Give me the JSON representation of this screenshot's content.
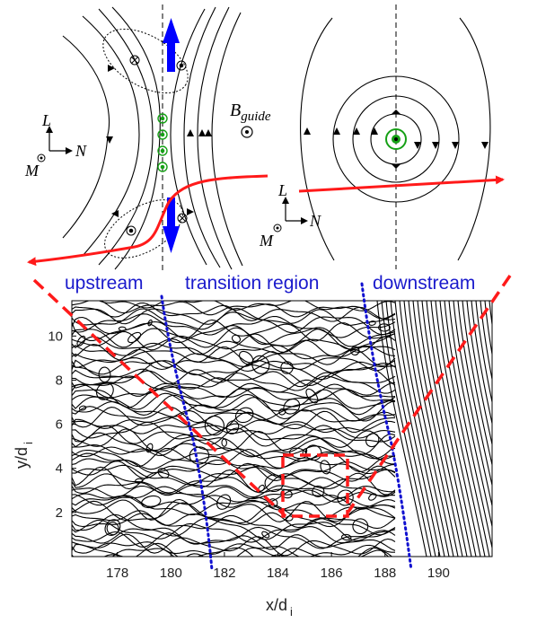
{
  "colors": {
    "region_text": "#1a1acc",
    "boundary_dotted": "#1010d0",
    "trajectory": "#ff1a1a",
    "current_arrow": "#0000ff",
    "flux_rope": "#16a016",
    "field_line": "#000000",
    "background": "#ffffff"
  },
  "top_left_panel": {
    "axes": {
      "L": "L",
      "N": "N",
      "M": "M"
    },
    "b_guide": {
      "symbol": "B",
      "subscript": "guide"
    }
  },
  "top_right_panel": {
    "axes": {
      "L": "L",
      "N": "N",
      "M": "M"
    }
  },
  "regions": {
    "upstream": "upstream",
    "transition": "transition region",
    "downstream": "downstream"
  },
  "main_plot": {
    "xlabel_main": "x/d",
    "xlabel_sub": "i",
    "ylabel_main": "y/d",
    "ylabel_sub": "i",
    "x_ticks": [
      "178",
      "180",
      "182",
      "184",
      "186",
      "188",
      "190"
    ],
    "y_ticks": [
      "2",
      "4",
      "6",
      "8",
      "10"
    ],
    "xlim": [
      176.3,
      192
    ],
    "ylim": [
      0,
      11.6
    ]
  }
}
